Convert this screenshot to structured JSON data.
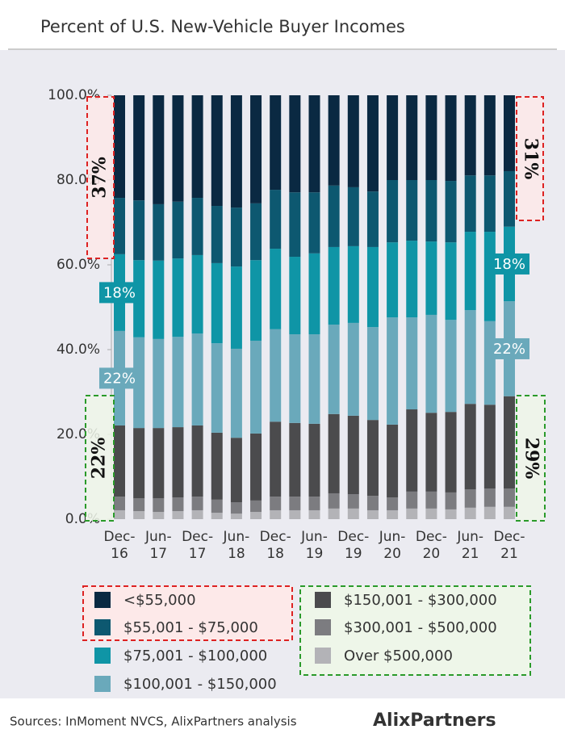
{
  "chart_data": {
    "type": "stacked-bar",
    "title": "Percent of U.S. New-Vehicle Buyer Incomes",
    "source": "Sources: InMoment NVCS, AlixPartners analysis",
    "logo": "AlixPartners",
    "categories": [
      "Dec-16",
      null,
      "Jun-17",
      null,
      "Dec-17",
      null,
      "Jun-18",
      null,
      "Dec-18",
      null,
      "Jun-19",
      null,
      "Dec-19",
      null,
      "Jun-20",
      null,
      "Dec-20",
      null,
      "Jun-21",
      null,
      "Dec-21"
    ],
    "ylim": [
      0,
      100
    ],
    "yticks": [
      {
        "value": 0,
        "label": "0.0%"
      },
      {
        "value": 20,
        "label": "20.0%"
      },
      {
        "value": 40,
        "label": "40.0%"
      },
      {
        "value": 60,
        "label": "60.0%"
      },
      {
        "value": 80,
        "label": "80.0%"
      },
      {
        "value": 100,
        "label": "100.0%"
      }
    ],
    "series": [
      {
        "name": "Over $500,000",
        "color": "#b3b3b7",
        "values": [
          2.1,
          1.9,
          1.7,
          1.9,
          2.1,
          1.5,
          1.3,
          1.7,
          2.1,
          2.1,
          2.1,
          2.5,
          2.5,
          2.1,
          2.1,
          2.5,
          2.5,
          2.3,
          2.7,
          2.9,
          2.9
        ]
      },
      {
        "name": "$300,001 - $500,000",
        "color": "#7c7c80",
        "values": [
          3.2,
          3.0,
          3.2,
          3.2,
          3.2,
          3.1,
          2.7,
          2.7,
          3.2,
          3.2,
          3.2,
          3.6,
          3.4,
          3.4,
          3.0,
          4.0,
          4.0,
          4.0,
          4.3,
          4.3,
          4.3
        ]
      },
      {
        "name": "$150,001 - $300,000",
        "color": "#4b4b4d",
        "values": [
          16.8,
          16.6,
          16.6,
          16.6,
          16.8,
          15.8,
          15.2,
          15.8,
          17.7,
          17.4,
          17.2,
          18.7,
          18.5,
          17.9,
          17.2,
          19.4,
          18.6,
          19.0,
          20.2,
          19.8,
          21.8
        ]
      },
      {
        "name": "$100,001 - $150,000",
        "color": "#6aa9bb",
        "values": [
          22.3,
          21.4,
          21.0,
          21.3,
          21.7,
          21.1,
          21.0,
          21.9,
          21.8,
          20.9,
          21.1,
          21.1,
          21.9,
          21.9,
          25.3,
          21.7,
          23.1,
          21.7,
          22.1,
          19.7,
          22.4
        ],
        "value_labels": [
          "22%",
          null,
          null,
          null,
          null,
          null,
          null,
          null,
          null,
          null,
          null,
          null,
          null,
          null,
          null,
          null,
          null,
          null,
          null,
          null,
          "22%"
        ]
      },
      {
        "name": "$75,001 - $100,000",
        "color": "#0f95a6",
        "values": [
          18.1,
          18.2,
          18.5,
          18.5,
          18.5,
          18.9,
          19.4,
          19.0,
          19.0,
          18.3,
          19.1,
          18.3,
          18.1,
          18.9,
          17.7,
          18.1,
          17.3,
          18.3,
          18.5,
          21.1,
          17.6
        ],
        "value_labels": [
          "18%",
          null,
          null,
          null,
          null,
          null,
          null,
          null,
          null,
          null,
          null,
          null,
          null,
          null,
          null,
          null,
          null,
          null,
          null,
          null,
          "18%"
        ]
      },
      {
        "name": "$55,001 - $75,000",
        "color": "#0d5870",
        "values": [
          13.3,
          14.1,
          13.3,
          13.4,
          13.5,
          13.5,
          13.9,
          13.4,
          13.9,
          15.2,
          14.4,
          14.5,
          13.9,
          13.1,
          14.7,
          14.3,
          14.5,
          14.5,
          13.3,
          13.3,
          13.1
        ]
      },
      {
        "name": "<$55,000",
        "color": "#0a2942",
        "values": [
          24.2,
          24.8,
          25.7,
          25.1,
          24.2,
          26.1,
          26.5,
          25.5,
          22.3,
          22.9,
          22.9,
          21.3,
          21.7,
          22.7,
          20.0,
          20.0,
          20.0,
          20.2,
          18.9,
          18.9,
          17.9
        ]
      }
    ],
    "annotations": [
      "37%",
      "31%",
      "22%",
      "29%"
    ]
  }
}
